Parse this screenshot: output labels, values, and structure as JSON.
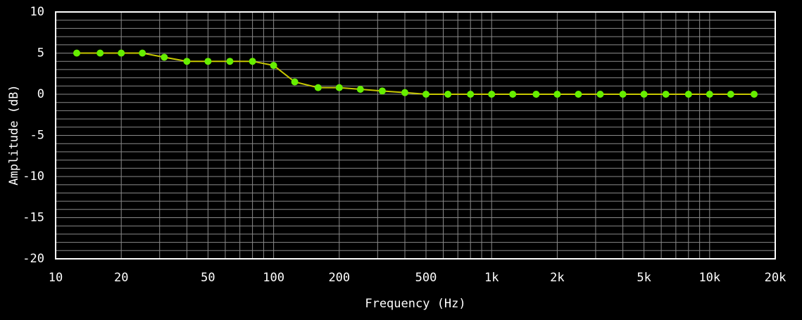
{
  "chart_data": {
    "type": "line",
    "xscale": "log",
    "grid": true,
    "xlabel": "Frequency (Hz)",
    "ylabel": "Amplitude (dB)",
    "x": [
      12.5,
      16,
      20,
      25,
      31.5,
      40,
      50,
      63,
      80,
      100,
      125,
      160,
      200,
      250,
      315,
      400,
      500,
      630,
      800,
      1000,
      1250,
      1600,
      2000,
      2500,
      3150,
      4000,
      5000,
      6300,
      8000,
      10000,
      12500,
      16000
    ],
    "series": [
      {
        "line_color": "#c8c800",
        "color": "#66ee00",
        "values": [
          5,
          5,
          5,
          5,
          4.5,
          4,
          4,
          4,
          4,
          3.5,
          1.5,
          0.8,
          0.8,
          0.6,
          0.4,
          0.2,
          0,
          0,
          0,
          0,
          0,
          0,
          0,
          0,
          0,
          0,
          0,
          0,
          0,
          0,
          0,
          0
        ]
      }
    ],
    "xlim": [
      10,
      20000
    ],
    "xticks": [
      10,
      20,
      50,
      100,
      200,
      500,
      {
        "value": 1000,
        "label": "1k"
      },
      {
        "value": 2000,
        "label": "2k"
      },
      {
        "value": 5000,
        "label": "5k"
      },
      {
        "value": 10000,
        "label": "10k"
      },
      {
        "value": 20000,
        "label": "20k"
      }
    ],
    "xticks_minor": [
      30,
      40,
      60,
      70,
      80,
      90,
      300,
      400,
      600,
      700,
      800,
      900,
      3000,
      4000,
      6000,
      7000,
      8000,
      9000
    ],
    "ylim": [
      -20,
      10
    ],
    "yticks": [
      10,
      5,
      0,
      -5,
      -10,
      -15,
      -20
    ],
    "yticks_minor": [
      9,
      8,
      7,
      6,
      4,
      3,
      2,
      1,
      -1,
      -2,
      -3,
      -4,
      -6,
      -7,
      -8,
      -9,
      -11,
      -12,
      -13,
      -14,
      -16,
      -17,
      -18,
      -19
    ]
  }
}
